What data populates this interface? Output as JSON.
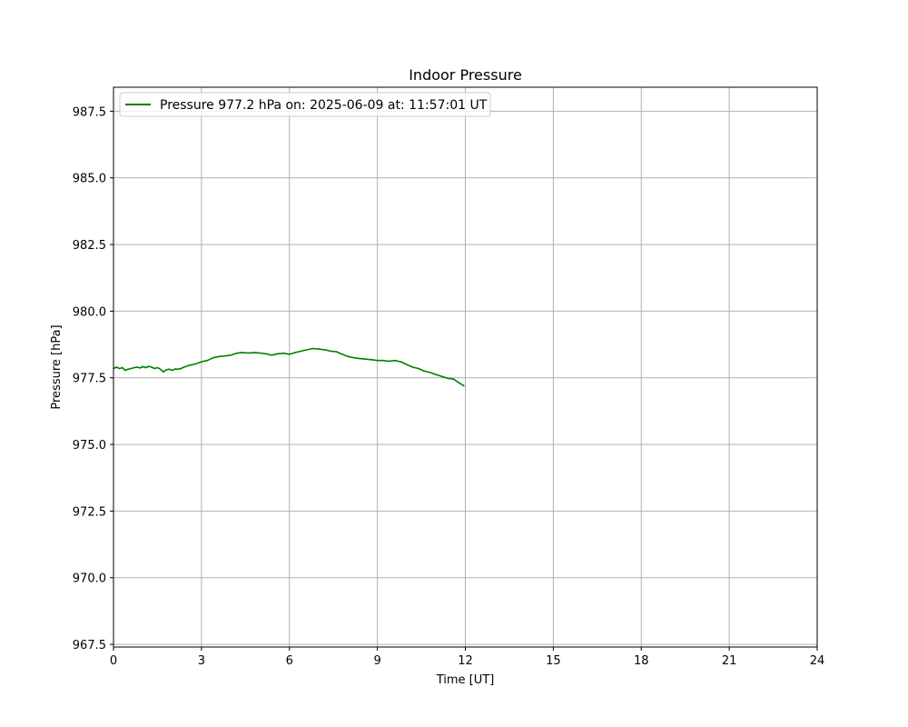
{
  "chart_data": {
    "type": "line",
    "title": "Indoor Pressure",
    "xlabel": "Time [UT]",
    "ylabel": "Pressure [hPa]",
    "xlim": [
      0,
      24
    ],
    "ylim": [
      967.4,
      988.4
    ],
    "xticks": [
      0,
      3,
      6,
      9,
      12,
      15,
      18,
      21,
      24
    ],
    "xtick_labels": [
      "0",
      "3",
      "6",
      "9",
      "12",
      "15",
      "18",
      "21",
      "24"
    ],
    "yticks": [
      967.5,
      970.0,
      972.5,
      975.0,
      977.5,
      980.0,
      982.5,
      985.0,
      987.5
    ],
    "ytick_labels": [
      "967.5",
      "970.0",
      "972.5",
      "975.0",
      "977.5",
      "980.0",
      "982.5",
      "985.0",
      "987.5"
    ],
    "grid": true,
    "legend_position": "top-left",
    "series": [
      {
        "name": "Pressure 977.2 hPa on: 2025-06-09 at: 11:57:01 UT",
        "color": "#008000",
        "x": [
          0,
          0.1,
          0.2,
          0.3,
          0.4,
          0.5,
          0.6,
          0.7,
          0.8,
          0.9,
          1.0,
          1.1,
          1.2,
          1.3,
          1.4,
          1.5,
          1.6,
          1.7,
          1.8,
          1.9,
          2.0,
          2.1,
          2.2,
          2.3,
          2.4,
          2.6,
          2.8,
          3.0,
          3.2,
          3.4,
          3.6,
          3.8,
          4.0,
          4.2,
          4.4,
          4.6,
          4.8,
          5.0,
          5.2,
          5.4,
          5.6,
          5.8,
          6.0,
          6.2,
          6.4,
          6.6,
          6.8,
          7.0,
          7.2,
          7.4,
          7.6,
          7.8,
          8.0,
          8.2,
          8.4,
          8.6,
          8.8,
          9.0,
          9.2,
          9.4,
          9.6,
          9.8,
          10.0,
          10.2,
          10.4,
          10.6,
          10.8,
          11.0,
          11.2,
          11.4,
          11.6,
          11.8,
          11.95
        ],
        "values": [
          977.85,
          977.9,
          977.85,
          977.88,
          977.78,
          977.82,
          977.85,
          977.88,
          977.9,
          977.87,
          977.92,
          977.88,
          977.93,
          977.9,
          977.85,
          977.88,
          977.82,
          977.72,
          977.8,
          977.82,
          977.78,
          977.83,
          977.82,
          977.85,
          977.9,
          977.97,
          978.02,
          978.1,
          978.15,
          978.25,
          978.3,
          978.32,
          978.35,
          978.42,
          978.45,
          978.43,
          978.45,
          978.43,
          978.4,
          978.35,
          978.4,
          978.42,
          978.38,
          978.45,
          978.5,
          978.55,
          978.6,
          978.58,
          978.55,
          978.5,
          978.48,
          978.38,
          978.3,
          978.25,
          978.22,
          978.2,
          978.18,
          978.15,
          978.15,
          978.12,
          978.15,
          978.1,
          978.0,
          977.9,
          977.85,
          977.75,
          977.7,
          977.62,
          977.55,
          977.48,
          977.45,
          977.3,
          977.2
        ]
      }
    ]
  }
}
